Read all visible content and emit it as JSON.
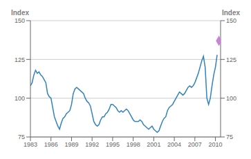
{
  "chart_data": {
    "type": "line",
    "ylabel": "Index",
    "y2label": "Index",
    "xlim": [
      1983.0,
      2010.75
    ],
    "xticks": [
      1983,
      1986,
      1989,
      1992,
      1995,
      1998,
      2001,
      2004,
      2007,
      2010
    ],
    "ylim": [
      75,
      150
    ],
    "yticks": [
      75,
      100,
      125,
      150
    ],
    "y2lim": [
      75,
      150
    ],
    "y2ticks": [
      75,
      100,
      125,
      150
    ],
    "grid": true,
    "x": [
      1983.0,
      1983.25,
      1983.5,
      1983.75,
      1984.0,
      1984.25,
      1984.5,
      1984.75,
      1985.0,
      1985.25,
      1985.5,
      1985.75,
      1986.0,
      1986.25,
      1986.5,
      1986.75,
      1987.0,
      1987.25,
      1987.5,
      1987.75,
      1988.0,
      1988.25,
      1988.5,
      1988.75,
      1989.0,
      1989.25,
      1989.5,
      1989.75,
      1990.0,
      1990.25,
      1990.5,
      1990.75,
      1991.0,
      1991.25,
      1991.5,
      1991.75,
      1992.0,
      1992.25,
      1992.5,
      1992.75,
      1993.0,
      1993.25,
      1993.5,
      1993.75,
      1994.0,
      1994.25,
      1994.5,
      1994.75,
      1995.0,
      1995.25,
      1995.5,
      1995.75,
      1996.0,
      1996.25,
      1996.5,
      1996.75,
      1997.0,
      1997.25,
      1997.5,
      1997.75,
      1998.0,
      1998.25,
      1998.5,
      1998.75,
      1999.0,
      1999.25,
      1999.5,
      1999.75,
      2000.0,
      2000.25,
      2000.5,
      2000.75,
      2001.0,
      2001.25,
      2001.5,
      2001.75,
      2002.0,
      2002.25,
      2002.5,
      2002.75,
      2003.0,
      2003.25,
      2003.5,
      2003.75,
      2004.0,
      2004.25,
      2004.5,
      2004.75,
      2005.0,
      2005.25,
      2005.5,
      2005.75,
      2006.0,
      2006.25,
      2006.5,
      2006.75,
      2007.0,
      2007.25,
      2007.5,
      2007.75,
      2008.0,
      2008.25,
      2008.5,
      2008.75,
      2009.0,
      2009.25,
      2009.5,
      2009.75,
      2010.0,
      2010.25
    ],
    "series": [
      {
        "type": "line",
        "values": [
          108,
          110,
          115,
          118,
          116,
          117,
          115,
          114,
          112,
          110,
          103,
          101,
          100,
          94,
          88,
          85,
          82,
          80,
          84,
          87,
          88,
          90,
          91,
          92,
          96,
          103,
          106,
          107,
          106,
          105,
          104,
          103,
          100,
          98,
          97,
          95,
          90,
          85,
          83,
          82,
          83,
          86,
          88,
          88,
          90,
          91,
          93,
          96,
          96,
          95,
          94,
          92,
          91,
          92,
          91,
          92,
          93,
          92,
          90,
          88,
          86,
          85,
          85,
          85,
          86,
          85,
          83,
          82,
          81,
          80,
          81,
          82,
          80,
          79,
          78,
          79,
          82,
          85,
          87,
          88,
          92,
          94,
          95,
          96,
          98,
          100,
          102,
          104,
          103,
          102,
          103,
          105,
          107,
          108,
          107,
          108,
          110,
          113,
          116,
          120,
          124,
          127,
          120,
          100,
          96,
          100,
          108,
          115,
          120,
          128
        ]
      },
      {
        "type": "scatter",
        "marker": "diamond",
        "axis": "y2",
        "x": [
          2010.5
        ],
        "values": [
          137
        ]
      }
    ]
  }
}
